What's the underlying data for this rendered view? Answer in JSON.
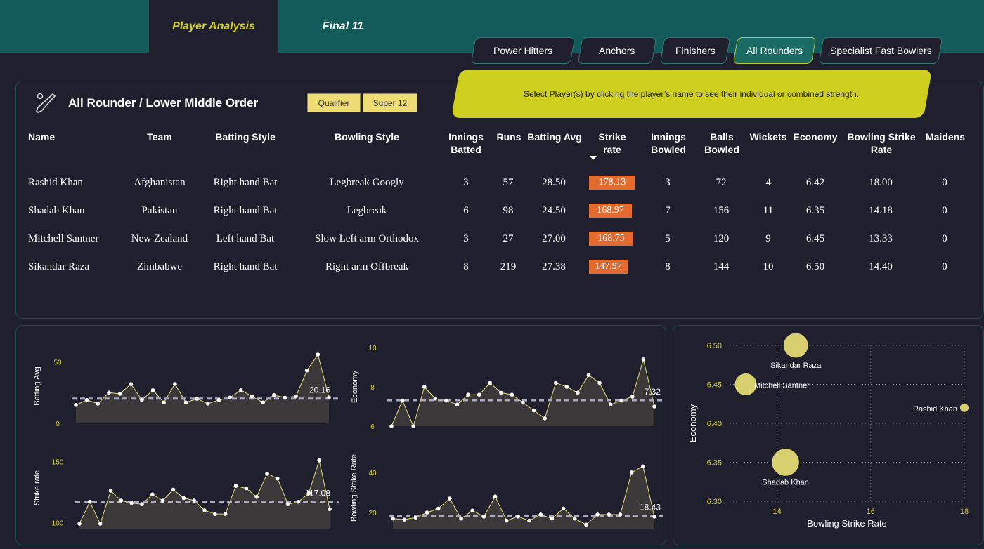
{
  "tabs": [
    {
      "label": "Player Analysis",
      "active": true
    },
    {
      "label": "Final 11",
      "active": false
    }
  ],
  "categories": [
    "Power Hitters",
    "Anchors",
    "Finishers",
    "All Rounders",
    "Specialist Fast Bowlers"
  ],
  "selected_category": "All Rounders",
  "banner_text": "Select Player(s) by clicking the player’s name to see their individual or combined strength.",
  "panel": {
    "title": "All Rounder / Lower Middle Order",
    "filters": [
      "Qualifier",
      "Super 12"
    ]
  },
  "table": {
    "headers": {
      "name": "Name",
      "team": "Team",
      "batting_style": "Batting Style",
      "bowling_style": "Bowling Style",
      "innings_batted_1": "Innings",
      "innings_batted_2": "Batted",
      "runs": "Runs",
      "batting_avg": "Batting Avg",
      "strike_rate_1": "Strike",
      "strike_rate_2": "rate",
      "innings_bowled_1": "Innings",
      "innings_bowled_2": "Bowled",
      "balls_bowled_1": "Balls",
      "balls_bowled_2": "Bowled",
      "wickets": "Wickets",
      "economy": "Economy",
      "bowling_sr_1": "Bowling Strike",
      "bowling_sr_2": "Rate",
      "maidens": "Maidens"
    },
    "rows": [
      {
        "name": "Rashid Khan",
        "team": "Afghanistan",
        "batting_style": "Right hand Bat",
        "bowling_style": "Legbreak Googly",
        "innings_batted": "3",
        "runs": "57",
        "batting_avg": "28.50",
        "strike_rate": "178.13",
        "innings_bowled": "3",
        "balls_bowled": "72",
        "wickets": "4",
        "economy": "6.42",
        "bowling_sr": "18.00",
        "maidens": "0"
      },
      {
        "name": "Shadab Khan",
        "team": "Pakistan",
        "batting_style": "Right hand Bat",
        "bowling_style": "Legbreak",
        "innings_batted": "6",
        "runs": "98",
        "batting_avg": "24.50",
        "strike_rate": "168.97",
        "innings_bowled": "7",
        "balls_bowled": "156",
        "wickets": "11",
        "economy": "6.35",
        "bowling_sr": "14.18",
        "maidens": "0"
      },
      {
        "name": "Mitchell Santner",
        "team": "New Zealand",
        "batting_style": "Left hand Bat",
        "bowling_style": "Slow Left arm Orthodox",
        "innings_batted": "3",
        "runs": "27",
        "batting_avg": "27.00",
        "strike_rate": "168.75",
        "innings_bowled": "5",
        "balls_bowled": "120",
        "wickets": "9",
        "economy": "6.45",
        "bowling_sr": "13.33",
        "maidens": "0"
      },
      {
        "name": "Sikandar Raza",
        "team": "Zimbabwe",
        "batting_style": "Right hand Bat",
        "bowling_style": "Right arm Offbreak",
        "innings_batted": "8",
        "runs": "219",
        "batting_avg": "27.38",
        "strike_rate": "147.97",
        "innings_bowled": "8",
        "balls_bowled": "144",
        "wickets": "10",
        "economy": "6.50",
        "bowling_sr": "14.40",
        "maidens": "0"
      }
    ]
  },
  "colors": {
    "accent": "#d7d321",
    "sr_bar": "#e46b2f",
    "teal": "#125b5a",
    "bg": "#1f1f2e"
  },
  "chart_data": [
    {
      "type": "area",
      "ylabel": "Batting Avg",
      "yticks": [
        0,
        50
      ],
      "ylim": [
        0,
        56
      ],
      "ref_label": "20.16",
      "ref_value": 20.16,
      "values": [
        15,
        19,
        16,
        25,
        24,
        32,
        19,
        27,
        17,
        32,
        17,
        20,
        16,
        19,
        21,
        27,
        22,
        17,
        23,
        21,
        22,
        43,
        56,
        21
      ]
    },
    {
      "type": "area",
      "ylabel": "Economy",
      "yticks": [
        6,
        8,
        10
      ],
      "ylim": [
        6,
        10
      ],
      "ref_label": "7.32",
      "ref_value": 7.32,
      "values": [
        6.0,
        7.3,
        6.0,
        8.0,
        7.4,
        7.3,
        7.1,
        7.6,
        7.6,
        8.2,
        7.7,
        7.6,
        7.2,
        6.8,
        6.4,
        8.2,
        8.0,
        7.7,
        8.6,
        8.2,
        7.1,
        7.3,
        7.5,
        9.4,
        7.0
      ]
    },
    {
      "type": "area",
      "ylabel": "Strike rate",
      "yticks": [
        100,
        150
      ],
      "ylim": [
        95,
        160
      ],
      "ref_label": "117.08",
      "ref_value": 117.08,
      "values": [
        99,
        117,
        99,
        126,
        118,
        116,
        115,
        123,
        118,
        127,
        120,
        118,
        110,
        107,
        107,
        130,
        128,
        121,
        140,
        136,
        115,
        117,
        124,
        151,
        111
      ]
    },
    {
      "type": "area",
      "ylabel": "Bowling Strike Rate",
      "yticks": [
        20,
        40
      ],
      "ylim": [
        12,
        48
      ],
      "ref_label": "18.43",
      "ref_value": 18.43,
      "values": [
        17,
        16.5,
        17.5,
        20,
        22,
        27,
        17,
        21,
        18,
        28,
        16,
        18,
        16,
        19,
        17,
        22,
        17,
        14,
        19,
        19,
        19,
        40,
        43,
        18
      ]
    },
    {
      "type": "scatter",
      "xlabel": "Bowling Strike Rate",
      "ylabel": "Economy",
      "xticks": [
        14,
        16,
        18
      ],
      "yticks": [
        "6.30",
        "6.35",
        "6.40",
        "6.45",
        "6.50"
      ],
      "xlim": [
        13,
        18
      ],
      "ylim": [
        6.3,
        6.5
      ],
      "points": [
        {
          "name": "Sikandar Raza",
          "x": 14.4,
          "y": 6.5,
          "wickets": 10
        },
        {
          "name": "Mitchell Santner",
          "x": 13.33,
          "y": 6.45,
          "wickets": 9
        },
        {
          "name": "Rashid Khan",
          "x": 18.0,
          "y": 6.42,
          "wickets": 4
        },
        {
          "name": "Shadab Khan",
          "x": 14.18,
          "y": 6.35,
          "wickets": 11
        }
      ]
    }
  ]
}
